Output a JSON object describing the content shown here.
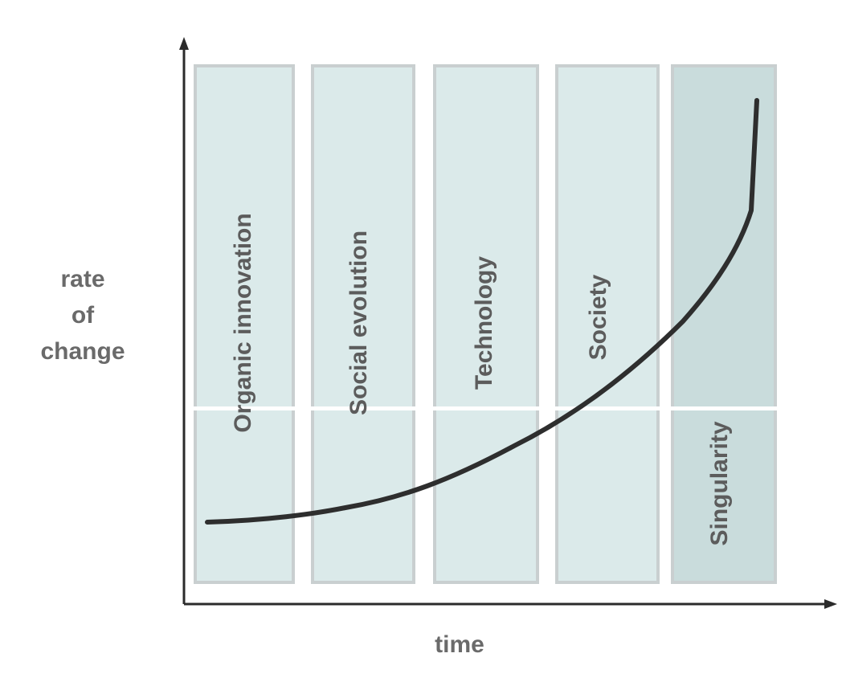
{
  "figure": {
    "y_axis_label_lines": [
      "rate",
      "of",
      "change"
    ],
    "x_axis_label": "time",
    "phases": [
      {
        "label": "Organic innovation"
      },
      {
        "label": "Social evolution"
      },
      {
        "label": "Technology"
      },
      {
        "label": "Society"
      },
      {
        "label": "Singularity"
      }
    ]
  },
  "colors": {
    "panel_fill": "#dbeaea",
    "panel_fill_last": "#c9dcdc",
    "axis": "#2b2b2b",
    "curve": "#2e2e2e"
  }
}
